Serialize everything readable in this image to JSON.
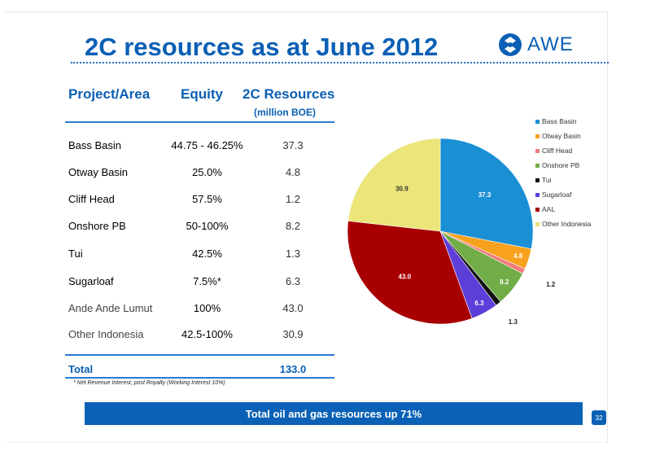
{
  "title": "2C resources as at June 2012",
  "logo": {
    "text": "AWE"
  },
  "table": {
    "headers": {
      "project": "Project/Area",
      "equity": "Equity",
      "resources": "2C Resources",
      "resources_unit": "(million BOE)"
    },
    "rows": [
      {
        "name": "Bass Basin",
        "equity": "44.75 - 46.25%",
        "value": "37.3"
      },
      {
        "name": "Otway Basin",
        "equity": "25.0%",
        "value": "4.8"
      },
      {
        "name": "Cliff Head",
        "equity": "57.5%",
        "value": "1.2"
      },
      {
        "name": "Onshore PB",
        "equity": "50-100%",
        "value": "8.2"
      },
      {
        "name": "Tui",
        "equity": "42.5%",
        "value": "1.3"
      },
      {
        "name": "Sugarloaf",
        "equity": "7.5%*",
        "value": "6.3"
      },
      {
        "name": "Ande Ande Lumut",
        "equity": "100%",
        "value": "43.0"
      },
      {
        "name": "Other Indonesia",
        "equity": "42.5-100%",
        "value": "30.9"
      }
    ],
    "total_label": "Total",
    "total_value": "133.0",
    "footnote": "* Net Revenue Interest, post Royalty (Working Interest 10%)"
  },
  "banner": "Total oil and gas resources up 71%",
  "page_number": "32",
  "colors": {
    "brand": "#0a5fb4",
    "rule": "#2a7bd0"
  },
  "chart_data": {
    "type": "pie",
    "categories": [
      "Bass Basin",
      "Otway Basin",
      "Cliff Head",
      "Onshore PB",
      "Tui",
      "Sugarloaf",
      "AAL",
      "Other Indonesia"
    ],
    "values": [
      37.3,
      4.8,
      1.2,
      8.2,
      1.3,
      6.3,
      43.0,
      30.9
    ],
    "labels": [
      "37.3",
      "4.8",
      "1.2",
      "8.2",
      "1.3",
      "6.3",
      "43.0",
      "30.9"
    ],
    "colors": [
      "#1b8fd4",
      "#f7a11c",
      "#f07b7b",
      "#71ad47",
      "#111111",
      "#5d3ed8",
      "#a80000",
      "#ebe57a"
    ],
    "legend": "right"
  }
}
